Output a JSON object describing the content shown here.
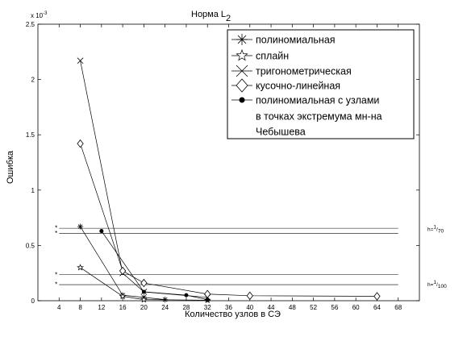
{
  "chart_data": {
    "type": "line",
    "title": "Норма L",
    "title_subscript": "2",
    "xlabel": "Количество узлов в СЭ",
    "ylabel": "Ошибка",
    "y_exponent_label": "x 10",
    "y_exponent_power": "-3",
    "xlim": [
      0,
      72
    ],
    "ylim": [
      0,
      2.5
    ],
    "x_ticks": [
      4,
      8,
      12,
      16,
      20,
      24,
      28,
      32,
      36,
      40,
      44,
      48,
      52,
      56,
      60,
      64,
      68
    ],
    "y_ticks": [
      0,
      0.5,
      1,
      1.5,
      2,
      2.5
    ],
    "y_tick_labels": [
      "0",
      "0.5",
      "1",
      "1.5",
      "2",
      "2.5"
    ],
    "grid": false,
    "legend_position": "top-right",
    "series": [
      {
        "name": "полиномиальная",
        "marker": "asterisk",
        "x": [
          8,
          16,
          20,
          24
        ],
        "y": [
          0.67,
          0.05,
          0.03,
          0.01
        ]
      },
      {
        "name": "сплайн",
        "marker": "star",
        "x": [
          8,
          16,
          20,
          32
        ],
        "y": [
          0.3,
          0.04,
          0.01,
          0.005
        ]
      },
      {
        "name": "тригонометрическая",
        "marker": "x",
        "x": [
          8,
          16,
          20,
          32
        ],
        "y": [
          2.17,
          0.25,
          0.08,
          0.03
        ]
      },
      {
        "name": "кусочно-линейная",
        "marker": "diamond",
        "x": [
          8,
          16,
          20,
          32,
          40,
          64
        ],
        "y": [
          1.42,
          0.27,
          0.16,
          0.06,
          0.045,
          0.04
        ]
      },
      {
        "name": "полиномиальная с узлами в точках экстремума мн-на Чебышева",
        "marker": "dot",
        "x": [
          12,
          20,
          28,
          32
        ],
        "y": [
          0.63,
          0.08,
          0.05,
          0.01
        ]
      }
    ],
    "legend_lines": [
      "полиномиальная",
      "сплайн",
      "тригонометрическая",
      "кусочно-линейная",
      "полиномиальная с узлами",
      "в точках экстремума мн-на",
      "Чебышева"
    ],
    "reference_lines": [
      {
        "y": 0.655,
        "x_start": 4,
        "x_end": 68
      },
      {
        "y": 0.61,
        "x_start": 4,
        "x_end": 68
      },
      {
        "y": 0.235,
        "x_start": 4,
        "x_end": 68
      },
      {
        "y": 0.145,
        "x_start": 4,
        "x_end": 68
      }
    ],
    "h_labels": [
      {
        "prefix": "h=",
        "num": "1",
        "den": "70",
        "y": 0.63
      },
      {
        "prefix": "h=",
        "num": "1",
        "den": "100",
        "y": 0.13
      }
    ]
  }
}
